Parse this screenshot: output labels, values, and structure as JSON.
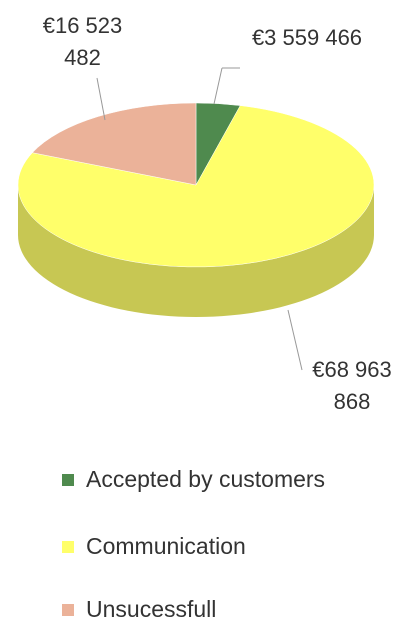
{
  "chart_data": {
    "type": "pie3d",
    "categories": [
      "Accepted by customers",
      "Communication",
      "Unsucessfull"
    ],
    "values": [
      3559466,
      68963868,
      16523482
    ],
    "value_labels": [
      "€3 559 466",
      "€68 963 868",
      "€16 523 482"
    ],
    "colors": [
      "#4f8a4e",
      "#ffff6a",
      "#ebb299"
    ],
    "legend": "bottom"
  }
}
